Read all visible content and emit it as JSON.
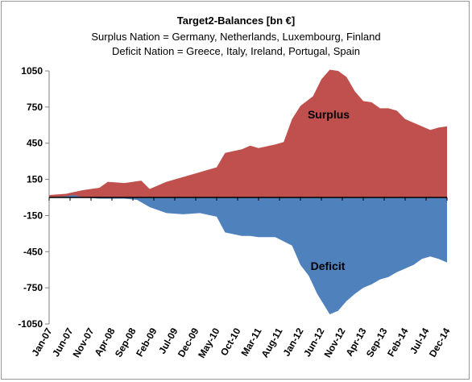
{
  "chart_data": {
    "type": "area",
    "title": "Target2-Balances  [bn €]",
    "subtitle_lines": [
      "Surplus Nation = Germany, Netherlands, Luxembourg, Finland",
      "Deficit Nation = Greece, Italy, Ireland, Portugal, Spain"
    ],
    "xlabel": "",
    "ylabel": "",
    "ylim": [
      -1050,
      1050
    ],
    "y_ticks": [
      1050,
      750,
      450,
      150,
      -150,
      -450,
      -750,
      -1050
    ],
    "x_tick_labels": [
      "Jan-07",
      "Jun-07",
      "Nov-07",
      "Apr-08",
      "Sep-08",
      "Feb-09",
      "Jul-09",
      "Dec-09",
      "May-10",
      "Oct-10",
      "Mar-11",
      "Aug-11",
      "Jan-12",
      "Jun-12",
      "Nov-12",
      "Apr-13",
      "Sep-13",
      "Feb-14",
      "Jul-14",
      "Dec-14"
    ],
    "x_range": [
      "Jan-07",
      "Dec-14"
    ],
    "grid": false,
    "legend": "none",
    "annotations": [
      "Surplus",
      "Deficit"
    ],
    "series": [
      {
        "name": "Surplus",
        "color": "#c0504d",
        "points": [
          [
            "2007-01",
            20
          ],
          [
            "2007-05",
            30
          ],
          [
            "2007-09",
            60
          ],
          [
            "2008-01",
            80
          ],
          [
            "2008-03",
            130
          ],
          [
            "2008-07",
            120
          ],
          [
            "2008-11",
            140
          ],
          [
            "2009-01",
            70
          ],
          [
            "2009-05",
            130
          ],
          [
            "2009-09",
            170
          ],
          [
            "2010-01",
            210
          ],
          [
            "2010-05",
            250
          ],
          [
            "2010-07",
            370
          ],
          [
            "2010-11",
            400
          ],
          [
            "2011-01",
            430
          ],
          [
            "2011-03",
            410
          ],
          [
            "2011-07",
            440
          ],
          [
            "2011-09",
            460
          ],
          [
            "2011-11",
            650
          ],
          [
            "2012-01",
            760
          ],
          [
            "2012-04",
            840
          ],
          [
            "2012-06",
            980
          ],
          [
            "2012-08",
            1060
          ],
          [
            "2012-10",
            1050
          ],
          [
            "2012-12",
            1000
          ],
          [
            "2013-02",
            880
          ],
          [
            "2013-04",
            800
          ],
          [
            "2013-06",
            790
          ],
          [
            "2013-08",
            740
          ],
          [
            "2013-10",
            740
          ],
          [
            "2013-12",
            720
          ],
          [
            "2014-02",
            650
          ],
          [
            "2014-04",
            620
          ],
          [
            "2014-06",
            590
          ],
          [
            "2014-08",
            560
          ],
          [
            "2014-10",
            580
          ],
          [
            "2014-12",
            590
          ]
        ]
      },
      {
        "name": "Deficit",
        "color": "#4f81bd",
        "points": [
          [
            "2007-01",
            0
          ],
          [
            "2007-05",
            10
          ],
          [
            "2007-07",
            20
          ],
          [
            "2007-09",
            0
          ],
          [
            "2008-01",
            -10
          ],
          [
            "2008-07",
            -10
          ],
          [
            "2008-10",
            -20
          ],
          [
            "2009-01",
            -80
          ],
          [
            "2009-05",
            -130
          ],
          [
            "2009-09",
            -140
          ],
          [
            "2010-01",
            -130
          ],
          [
            "2010-05",
            -160
          ],
          [
            "2010-07",
            -290
          ],
          [
            "2010-11",
            -320
          ],
          [
            "2011-01",
            -320
          ],
          [
            "2011-03",
            -330
          ],
          [
            "2011-07",
            -330
          ],
          [
            "2011-11",
            -400
          ],
          [
            "2012-01",
            -560
          ],
          [
            "2012-03",
            -650
          ],
          [
            "2012-05",
            -800
          ],
          [
            "2012-08",
            -970
          ],
          [
            "2012-10",
            -940
          ],
          [
            "2012-12",
            -860
          ],
          [
            "2013-02",
            -800
          ],
          [
            "2013-04",
            -750
          ],
          [
            "2013-06",
            -720
          ],
          [
            "2013-08",
            -680
          ],
          [
            "2013-10",
            -660
          ],
          [
            "2013-12",
            -620
          ],
          [
            "2014-02",
            -590
          ],
          [
            "2014-04",
            -560
          ],
          [
            "2014-06",
            -510
          ],
          [
            "2014-08",
            -490
          ],
          [
            "2014-10",
            -510
          ],
          [
            "2014-12",
            -540
          ]
        ]
      }
    ]
  }
}
